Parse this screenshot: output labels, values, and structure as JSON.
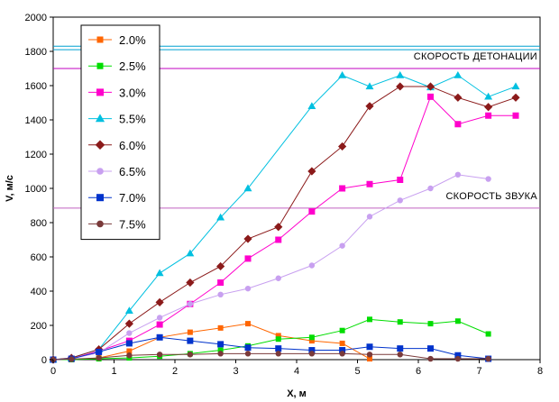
{
  "chart_data": {
    "type": "line",
    "xlabel": "X, м",
    "ylabel": "V, м/с",
    "xlim": [
      0,
      8
    ],
    "ylim": [
      0,
      2000
    ],
    "xticks": [
      0,
      1,
      2,
      3,
      4,
      5,
      6,
      7,
      8
    ],
    "yticks": [
      0,
      200,
      400,
      600,
      800,
      1000,
      1200,
      1400,
      1600,
      1800,
      2000
    ],
    "grid": false,
    "legend_position": "top-left",
    "reference_lines": [
      {
        "y": 1830,
        "color": "#00a0d0",
        "label": ""
      },
      {
        "y": 1810,
        "color": "#00a0d0",
        "label": ""
      },
      {
        "y": 1700,
        "color": "#c000c0",
        "label": "СКОРОСТЬ ДЕТОНАЦИИ"
      },
      {
        "y": 885,
        "color": "#c060c0",
        "label": "СКОРОСТЬ ЗВУКА"
      }
    ],
    "series": [
      {
        "name": "2.0%",
        "color": "#ff6600",
        "marker": "square",
        "size": 5,
        "x": [
          0,
          0.3,
          0.75,
          1.25,
          1.75,
          2.25,
          2.75,
          3.2,
          3.7,
          4.25,
          4.75,
          5.2
        ],
        "y": [
          0,
          0,
          10,
          50,
          130,
          160,
          185,
          210,
          140,
          110,
          95,
          5
        ]
      },
      {
        "name": "2.5%",
        "color": "#00dd00",
        "marker": "square",
        "size": 5,
        "x": [
          0,
          0.3,
          0.75,
          1.25,
          1.75,
          2.25,
          2.75,
          3.2,
          3.7,
          4.25,
          4.75,
          5.2,
          5.7,
          6.2,
          6.65,
          7.15
        ],
        "y": [
          0,
          0,
          5,
          10,
          20,
          35,
          55,
          80,
          120,
          130,
          170,
          235,
          220,
          210,
          225,
          150
        ]
      },
      {
        "name": "3.0%",
        "color": "#ff00cc",
        "marker": "square",
        "size": 6,
        "x": [
          0,
          0.3,
          0.75,
          1.25,
          1.75,
          2.25,
          2.75,
          3.2,
          3.7,
          4.25,
          4.75,
          5.2,
          5.7,
          6.2,
          6.65,
          7.15,
          7.6
        ],
        "y": [
          0,
          5,
          50,
          110,
          205,
          325,
          450,
          590,
          700,
          865,
          1000,
          1025,
          1050,
          1535,
          1375,
          1425,
          1425
        ]
      },
      {
        "name": "5.5%",
        "color": "#00c0e0",
        "marker": "triangle",
        "size": 6,
        "x": [
          0,
          0.3,
          0.75,
          1.25,
          1.75,
          2.25,
          2.75,
          3.2,
          4.25,
          4.75,
          5.2,
          5.7,
          6.2,
          6.65,
          7.15,
          7.6
        ],
        "y": [
          0,
          10,
          60,
          285,
          505,
          620,
          830,
          1000,
          1480,
          1660,
          1595,
          1660,
          1590,
          1660,
          1535,
          1595
        ]
      },
      {
        "name": "6.0%",
        "color": "#8b1a1a",
        "marker": "diamond",
        "size": 6,
        "x": [
          0,
          0.3,
          0.75,
          1.25,
          1.75,
          2.25,
          2.75,
          3.2,
          3.7,
          4.25,
          4.75,
          5.2,
          5.7,
          6.2,
          6.65,
          7.15,
          7.6
        ],
        "y": [
          0,
          10,
          60,
          210,
          335,
          450,
          545,
          705,
          775,
          1100,
          1245,
          1480,
          1595,
          1595,
          1530,
          1475,
          1530
        ]
      },
      {
        "name": "6.5%",
        "color": "#c8a0f0",
        "marker": "circle",
        "size": 4.5,
        "x": [
          0,
          0.3,
          0.75,
          1.25,
          1.75,
          2.25,
          2.75,
          3.2,
          3.7,
          4.25,
          4.75,
          5.2,
          5.7,
          6.2,
          6.65,
          7.15
        ],
        "y": [
          0,
          5,
          40,
          155,
          245,
          325,
          380,
          415,
          475,
          550,
          665,
          835,
          930,
          1000,
          1080,
          1055
        ]
      },
      {
        "name": "7.0%",
        "color": "#0033cc",
        "marker": "square",
        "size": 6,
        "x": [
          0,
          0.3,
          0.75,
          1.25,
          1.75,
          2.25,
          2.75,
          3.2,
          3.7,
          4.25,
          4.75,
          5.2,
          5.7,
          6.2,
          6.65,
          7.15
        ],
        "y": [
          0,
          5,
          45,
          95,
          130,
          110,
          90,
          70,
          65,
          55,
          55,
          75,
          65,
          65,
          25,
          5
        ]
      },
      {
        "name": "7.5%",
        "color": "#7a3a3a",
        "marker": "circle",
        "size": 4.5,
        "x": [
          0,
          0.3,
          0.75,
          1.25,
          1.75,
          2.25,
          2.75,
          3.2,
          3.7,
          4.25,
          4.75,
          5.2,
          5.7,
          6.2,
          6.65,
          7.15
        ],
        "y": [
          0,
          3,
          10,
          25,
          30,
          30,
          35,
          35,
          35,
          35,
          35,
          30,
          30,
          5,
          5,
          5
        ]
      }
    ]
  }
}
